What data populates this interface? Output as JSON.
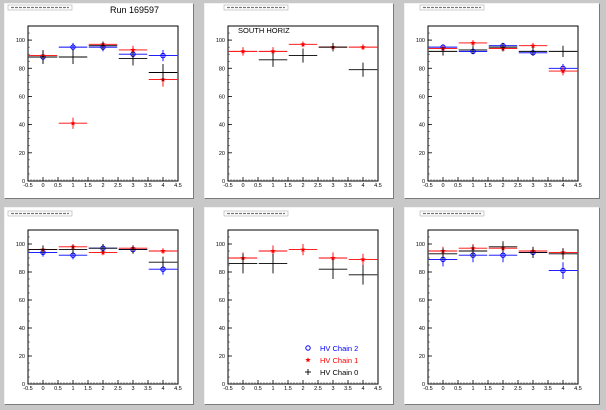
{
  "header": {
    "run_label": "Run 169597"
  },
  "chart_data": [
    {
      "type": "scatter",
      "title": "",
      "xlim": [
        -0.5,
        4.5
      ],
      "ylim": [
        0,
        110
      ],
      "x_ticks": [
        "-0.5",
        "0",
        "0.5",
        "1",
        "1.5",
        "2",
        "2.5",
        "3",
        "3.5",
        "4",
        "4.5"
      ],
      "y_ticks": [
        "0",
        "20",
        "40",
        "60",
        "80",
        "100"
      ],
      "grid": false,
      "series": [
        {
          "name": "HV Chain 2",
          "color": "#0000ff",
          "x": [
            0,
            1,
            2,
            3,
            4
          ],
          "y": [
            88,
            95,
            95,
            90,
            89
          ],
          "yerr": [
            4,
            3,
            3,
            4,
            4
          ]
        },
        {
          "name": "HV Chain 1",
          "color": "#ff0000",
          "x": [
            0,
            1,
            2,
            3,
            4
          ],
          "y": [
            89,
            41,
            97,
            93,
            72
          ],
          "yerr": [
            3,
            4,
            2,
            3,
            5
          ]
        },
        {
          "name": "HV Chain 0",
          "color": "#000000",
          "x": [
            0,
            1,
            2,
            3,
            4
          ],
          "y": [
            88,
            88,
            96,
            87,
            77
          ],
          "yerr": [
            5,
            5,
            3,
            5,
            6
          ]
        }
      ]
    },
    {
      "type": "scatter",
      "title": "",
      "annotation": "SOUTH HORIZ",
      "xlim": [
        -0.5,
        4.5
      ],
      "ylim": [
        0,
        110
      ],
      "x_ticks": [
        "-0.5",
        "0",
        "0.5",
        "1",
        "1.5",
        "2",
        "2.5",
        "3",
        "3.5",
        "4",
        "4.5"
      ],
      "y_ticks": [
        "0",
        "20",
        "40",
        "60",
        "80",
        "100"
      ],
      "grid": false,
      "series": [
        {
          "name": "HV Chain 1",
          "color": "#ff0000",
          "x": [
            0,
            1,
            2,
            3,
            4
          ],
          "y": [
            92,
            92,
            97,
            95,
            95
          ],
          "yerr": [
            3,
            3,
            2,
            2,
            2
          ]
        },
        {
          "name": "HV Chain 0",
          "color": "#000000",
          "x": [
            1,
            2,
            3,
            4
          ],
          "y": [
            86,
            89,
            95,
            79
          ],
          "yerr": [
            5,
            5,
            3,
            5
          ]
        }
      ]
    },
    {
      "type": "scatter",
      "title": "",
      "xlim": [
        -0.5,
        4.5
      ],
      "ylim": [
        0,
        110
      ],
      "x_ticks": [
        "-0.5",
        "0",
        "0.5",
        "1",
        "1.5",
        "2",
        "2.5",
        "3",
        "3.5",
        "4",
        "4.5"
      ],
      "y_ticks": [
        "0",
        "20",
        "40",
        "60",
        "80",
        "100"
      ],
      "grid": false,
      "series": [
        {
          "name": "HV Chain 2",
          "color": "#0000ff",
          "x": [
            0,
            1,
            2,
            3,
            4
          ],
          "y": [
            95,
            92,
            96,
            91,
            80
          ],
          "yerr": [
            2,
            2,
            2,
            2,
            3
          ]
        },
        {
          "name": "HV Chain 1",
          "color": "#ff0000",
          "x": [
            0,
            1,
            2,
            3,
            4
          ],
          "y": [
            94,
            98,
            94,
            96,
            78
          ],
          "yerr": [
            2,
            2,
            2,
            2,
            3
          ]
        },
        {
          "name": "HV Chain 0",
          "color": "#000000",
          "x": [
            0,
            1,
            2,
            3,
            4
          ],
          "y": [
            92,
            93,
            95,
            92,
            92
          ],
          "yerr": [
            3,
            3,
            3,
            3,
            4
          ]
        }
      ]
    },
    {
      "type": "scatter",
      "title": "",
      "xlim": [
        -0.5,
        4.5
      ],
      "ylim": [
        0,
        110
      ],
      "x_ticks": [
        "-0.5",
        "0",
        "0.5",
        "1",
        "1.5",
        "2",
        "2.5",
        "3",
        "3.5",
        "4",
        "4.5"
      ],
      "y_ticks": [
        "0",
        "20",
        "40",
        "60",
        "80",
        "100"
      ],
      "grid": false,
      "series": [
        {
          "name": "HV Chain 2",
          "color": "#0000ff",
          "x": [
            0,
            1,
            2,
            3,
            4
          ],
          "y": [
            94,
            92,
            97,
            96,
            82
          ],
          "yerr": [
            3,
            3,
            3,
            2,
            4
          ]
        },
        {
          "name": "HV Chain 1",
          "color": "#ff0000",
          "x": [
            0,
            1,
            2,
            3,
            4
          ],
          "y": [
            96,
            98,
            94,
            97,
            95
          ],
          "yerr": [
            2,
            2,
            2,
            2,
            2
          ]
        },
        {
          "name": "HV Chain 0",
          "color": "#000000",
          "x": [
            0,
            1,
            2,
            3,
            4
          ],
          "y": [
            96,
            96,
            97,
            96,
            87
          ],
          "yerr": [
            3,
            3,
            3,
            3,
            4
          ]
        }
      ]
    },
    {
      "type": "scatter",
      "title": "",
      "xlim": [
        -0.5,
        4.5
      ],
      "ylim": [
        0,
        110
      ],
      "x_ticks": [
        "-0.5",
        "0",
        "0.5",
        "1",
        "1.5",
        "2",
        "2.5",
        "3",
        "3.5",
        "4",
        "4.5"
      ],
      "y_ticks": [
        "0",
        "20",
        "40",
        "60",
        "80",
        "100"
      ],
      "grid": false,
      "legend": "bottom-right",
      "legend_entries": [
        {
          "label": "HV Chain 2",
          "color": "#0000ff",
          "marker": "circle"
        },
        {
          "label": "HV Chain 1",
          "color": "#ff0000",
          "marker": "star"
        },
        {
          "label": "HV Chain 0",
          "color": "#000000",
          "marker": "cross"
        }
      ],
      "series": [
        {
          "name": "HV Chain 1",
          "color": "#ff0000",
          "x": [
            0,
            1,
            2,
            3,
            4
          ],
          "y": [
            90,
            95,
            96,
            90,
            89
          ],
          "yerr": [
            4,
            4,
            4,
            4,
            4
          ]
        },
        {
          "name": "HV Chain 0",
          "color": "#000000",
          "x": [
            0,
            1,
            3,
            4
          ],
          "y": [
            86,
            86,
            82,
            78
          ],
          "yerr": [
            7,
            7,
            7,
            7
          ]
        }
      ]
    },
    {
      "type": "scatter",
      "title": "",
      "xlim": [
        -0.5,
        4.5
      ],
      "ylim": [
        0,
        110
      ],
      "x_ticks": [
        "-0.5",
        "0",
        "0.5",
        "1",
        "1.5",
        "2",
        "2.5",
        "3",
        "3.5",
        "4",
        "4.5"
      ],
      "y_ticks": [
        "0",
        "20",
        "40",
        "60",
        "80",
        "100"
      ],
      "grid": false,
      "series": [
        {
          "name": "HV Chain 2",
          "color": "#0000ff",
          "x": [
            0,
            1,
            2,
            3,
            4
          ],
          "y": [
            89,
            92,
            92,
            94,
            81
          ],
          "yerr": [
            5,
            5,
            5,
            3,
            6
          ]
        },
        {
          "name": "HV Chain 1",
          "color": "#ff0000",
          "x": [
            0,
            1,
            2,
            3,
            4
          ],
          "y": [
            95,
            97,
            97,
            95,
            94
          ],
          "yerr": [
            3,
            3,
            3,
            2,
            3
          ]
        },
        {
          "name": "HV Chain 0",
          "color": "#000000",
          "x": [
            0,
            1,
            2,
            3,
            4
          ],
          "y": [
            93,
            95,
            98,
            94,
            93
          ],
          "yerr": [
            4,
            4,
            4,
            4,
            4
          ]
        }
      ]
    }
  ]
}
